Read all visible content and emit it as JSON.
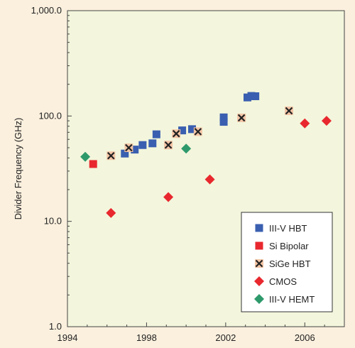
{
  "chart_data": {
    "type": "scatter",
    "title": "",
    "xlabel": "",
    "ylabel": "Divider Frequency (GHz)",
    "xlim": [
      1994,
      2008
    ],
    "ylim": [
      1.0,
      1000.0
    ],
    "yscale": "log",
    "x_ticks": [
      1994,
      1998,
      2002,
      2006
    ],
    "x_tick_labels": [
      "1994",
      "1998",
      "2002",
      "2006"
    ],
    "y_ticks": [
      1,
      10,
      100,
      1000
    ],
    "y_tick_labels": [
      "1.0",
      "10.0",
      "100.0",
      "1,000.0"
    ],
    "grid": false,
    "legend_position": "bottom-right",
    "background_color": "#f3f6dc",
    "series": [
      {
        "name": "III-V HBT",
        "marker": "square",
        "color": "#3a5fb0",
        "points": [
          {
            "x": 1996.9,
            "y": 44
          },
          {
            "x": 1997.4,
            "y": 48
          },
          {
            "x": 1997.8,
            "y": 53
          },
          {
            "x": 1998.3,
            "y": 55
          },
          {
            "x": 1998.5,
            "y": 67
          },
          {
            "x": 1999.8,
            "y": 73
          },
          {
            "x": 2000.3,
            "y": 75
          },
          {
            "x": 2001.9,
            "y": 88
          },
          {
            "x": 2001.9,
            "y": 97
          },
          {
            "x": 2003.1,
            "y": 150
          },
          {
            "x": 2003.3,
            "y": 155
          },
          {
            "x": 2003.5,
            "y": 154
          }
        ]
      },
      {
        "name": "Si Bipolar",
        "marker": "square",
        "color": "#e8282e",
        "points": [
          {
            "x": 1995.3,
            "y": 35
          }
        ]
      },
      {
        "name": "SiGe HBT",
        "marker": "x-square",
        "color": "#f3c5a6",
        "points": [
          {
            "x": 1996.2,
            "y": 42
          },
          {
            "x": 1997.1,
            "y": 50
          },
          {
            "x": 1999.1,
            "y": 53
          },
          {
            "x": 1999.5,
            "y": 68
          },
          {
            "x": 2000.6,
            "y": 71
          },
          {
            "x": 2002.8,
            "y": 96
          },
          {
            "x": 2005.2,
            "y": 112
          }
        ]
      },
      {
        "name": "CMOS",
        "marker": "diamond",
        "color": "#e8282e",
        "points": [
          {
            "x": 1996.2,
            "y": 12
          },
          {
            "x": 1999.1,
            "y": 17
          },
          {
            "x": 2001.2,
            "y": 25
          },
          {
            "x": 2006.0,
            "y": 85
          },
          {
            "x": 2007.1,
            "y": 90
          }
        ]
      },
      {
        "name": "III-V HEMT",
        "marker": "diamond",
        "color": "#2e9a6c",
        "points": [
          {
            "x": 1994.9,
            "y": 41
          },
          {
            "x": 2000.0,
            "y": 49
          }
        ]
      }
    ]
  }
}
